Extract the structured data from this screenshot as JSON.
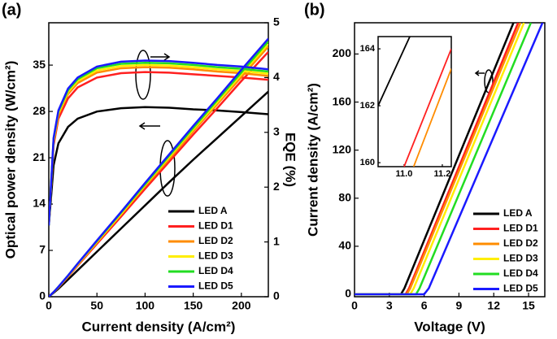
{
  "chart_data": [
    {
      "type": "line",
      "panel_label": "(a)",
      "xlabel": "Current density (A/cm²)",
      "ylabel": "Optical power density (W/cm²)",
      "y2label": "EQE (%)",
      "x": [
        0,
        5,
        10,
        20,
        30,
        50,
        75,
        100,
        125,
        150,
        175,
        200,
        228
      ],
      "xlim": [
        0,
        228
      ],
      "xticks": [
        0,
        50,
        100,
        150,
        200
      ],
      "ylim": [
        0,
        41.4
      ],
      "yticks": [
        0,
        7,
        14,
        21,
        28,
        35
      ],
      "y2lim": [
        0,
        5
      ],
      "y2ticks": [
        0,
        1,
        2,
        3,
        4,
        5
      ],
      "legend": "lower right",
      "series": [
        {
          "name": "LED A",
          "color": "#000000",
          "values": [
            0,
            0.6,
            1.2,
            2.6,
            4,
            6.8,
            10.3,
            13.8,
            17.3,
            20.7,
            24,
            27.3,
            31
          ],
          "y2_values": [
            1.3,
            2.4,
            2.8,
            3.1,
            3.25,
            3.38,
            3.44,
            3.46,
            3.45,
            3.42,
            3.4,
            3.37,
            3.33
          ]
        },
        {
          "name": "LED D1",
          "color": "#ff2020",
          "values": [
            0,
            0.7,
            1.4,
            3,
            4.7,
            8,
            12.1,
            16.3,
            20.4,
            24.5,
            28.5,
            32.6,
            37
          ],
          "y2_values": [
            1.3,
            2.77,
            3.25,
            3.62,
            3.82,
            4.0,
            4.08,
            4.1,
            4.09,
            4.06,
            4.03,
            4.0,
            3.96
          ]
        },
        {
          "name": "LED D2",
          "color": "#ff8c00",
          "values": [
            0,
            0.7,
            1.4,
            3.1,
            4.8,
            8.2,
            12.4,
            16.7,
            20.8,
            25,
            29.1,
            33.2,
            37.8
          ],
          "y2_values": [
            1.3,
            2.83,
            3.32,
            3.7,
            3.9,
            4.09,
            4.17,
            4.19,
            4.18,
            4.15,
            4.11,
            4.08,
            4.03
          ]
        },
        {
          "name": "LED D3",
          "color": "#ffee00",
          "values": [
            0,
            0.7,
            1.5,
            3.1,
            4.9,
            8.3,
            12.5,
            16.9,
            21.1,
            25.3,
            29.4,
            33.6,
            38.2
          ],
          "y2_values": [
            1.3,
            2.85,
            3.35,
            3.74,
            3.94,
            4.13,
            4.21,
            4.23,
            4.22,
            4.19,
            4.15,
            4.12,
            4.07
          ]
        },
        {
          "name": "LED D4",
          "color": "#22dd22",
          "values": [
            0,
            0.7,
            1.5,
            3.2,
            5,
            8.4,
            12.7,
            17,
            21.3,
            25.5,
            29.7,
            33.9,
            38.6
          ],
          "y2_values": [
            1.3,
            2.88,
            3.38,
            3.77,
            3.97,
            4.17,
            4.25,
            4.27,
            4.26,
            4.23,
            4.19,
            4.16,
            4.11
          ]
        },
        {
          "name": "LED D5",
          "color": "#1a1aff",
          "values": [
            0,
            0.7,
            1.5,
            3.2,
            5,
            8.5,
            12.8,
            17.2,
            21.5,
            25.8,
            30,
            34.3,
            39
          ],
          "y2_values": [
            1.3,
            2.9,
            3.4,
            3.8,
            4.0,
            4.2,
            4.29,
            4.31,
            4.3,
            4.27,
            4.23,
            4.2,
            4.15
          ]
        }
      ]
    },
    {
      "type": "line",
      "panel_label": "(b)",
      "xlabel": "Voltage (V)",
      "ylabel": "Current density (A/cm²)",
      "xlim": [
        0,
        16.4
      ],
      "xticks": [
        0,
        3,
        6,
        9,
        12,
        15
      ],
      "ylim": [
        -2,
        226
      ],
      "yticks": [
        0,
        40,
        80,
        120,
        160,
        200
      ],
      "legend": "lower right",
      "series": [
        {
          "name": "LED A",
          "color": "#000000",
          "x": [
            0,
            4.0,
            4.3,
            13.7
          ],
          "values": [
            0,
            0,
            5,
            226
          ]
        },
        {
          "name": "LED D1",
          "color": "#ff2020",
          "x": [
            0,
            4.4,
            4.7,
            14.1
          ],
          "values": [
            0,
            0,
            5,
            226
          ]
        },
        {
          "name": "LED D2",
          "color": "#ff8c00",
          "x": [
            0,
            4.5,
            4.8,
            14.3
          ],
          "values": [
            0,
            0,
            5,
            226
          ]
        },
        {
          "name": "LED D3",
          "color": "#ffee00",
          "x": [
            0,
            4.8,
            5.1,
            14.6
          ],
          "values": [
            0,
            0,
            5,
            226
          ]
        },
        {
          "name": "LED D4",
          "color": "#22dd22",
          "x": [
            0,
            5.3,
            5.6,
            15.2
          ],
          "values": [
            0,
            0,
            5,
            226
          ]
        },
        {
          "name": "LED D5",
          "color": "#1a1aff",
          "x": [
            0,
            6.0,
            6.4,
            16.2
          ],
          "values": [
            0,
            0,
            5,
            226
          ]
        }
      ],
      "inset": {
        "xlim": [
          10.864,
          11.247
        ],
        "xticks": [
          {
            "value": 11.0,
            "label": "11.0"
          },
          {
            "value": 11.2,
            "label": "11.2"
          }
        ],
        "ylim": [
          159.86,
          164.43
        ],
        "yticks": [
          160,
          162,
          164
        ],
        "series": [
          {
            "color": "#000000",
            "x": [
              10.864,
              11.03
            ],
            "values": [
              162.0,
              164.43
            ]
          },
          {
            "color": "#ff2020",
            "x": [
              11.0,
              11.247
            ],
            "values": [
              159.86,
              164.0
            ]
          },
          {
            "color": "#ff8c00",
            "x": [
              11.05,
              11.247
            ],
            "values": [
              159.86,
              163.3
            ]
          }
        ]
      }
    }
  ]
}
